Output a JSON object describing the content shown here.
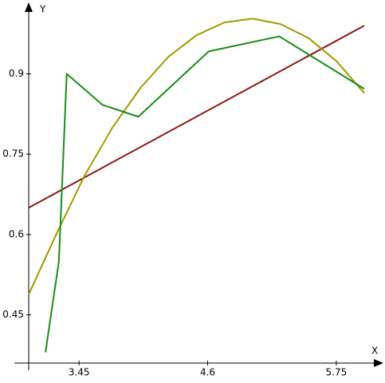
{
  "chart_data": {
    "type": "line",
    "x_label": "X",
    "y_label": "Y",
    "xlim": [
      3.0,
      6.1
    ],
    "ylim": [
      0.36,
      1.02
    ],
    "xticks": [
      3.45,
      4.6,
      5.75
    ],
    "yticks": [
      0.45,
      0.6,
      0.75,
      0.9
    ],
    "grid": false,
    "series": [
      {
        "color": "#8b1a1a",
        "x": [
          3.0,
          6.0
        ],
        "values": [
          0.65,
          0.99
        ]
      },
      {
        "color": "#a09a00",
        "x": [
          3.0,
          3.25,
          3.5,
          3.75,
          4.0,
          4.25,
          4.5,
          4.75,
          5.0,
          5.25,
          5.5,
          5.75,
          6.0
        ],
        "values": [
          0.488,
          0.602,
          0.71,
          0.8,
          0.874,
          0.932,
          0.972,
          0.996,
          1.003,
          0.993,
          0.967,
          0.924,
          0.864
        ]
      },
      {
        "color": "#1a8c1a",
        "x": [
          3.15,
          3.27,
          3.34,
          3.66,
          3.98,
          4.61,
          5.24,
          6.0
        ],
        "values": [
          0.38,
          0.55,
          0.9,
          0.842,
          0.82,
          0.942,
          0.97,
          0.872
        ]
      }
    ]
  }
}
